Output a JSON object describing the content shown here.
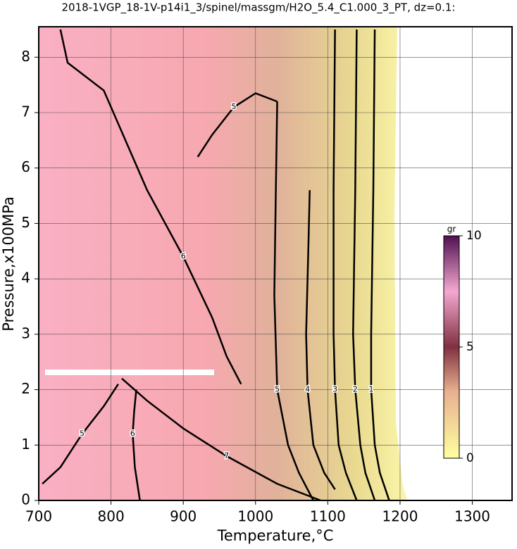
{
  "chart_data": {
    "type": "contour",
    "title": "2018-1VGP_18-1V-p14i1_3/spinel/massgm/H2O_5.4_C1.000_3_PT, dz=0.1:",
    "x_label": "Temperature,°C",
    "y_label": "Pressure,x100MPa",
    "xlim": [
      700,
      1355
    ],
    "xticks": [
      700,
      800,
      900,
      1000,
      1100,
      1200,
      1300
    ],
    "ylim": [
      0,
      8.55
    ],
    "yticks": [
      0,
      1,
      2,
      3,
      4,
      5,
      6,
      7,
      8
    ],
    "grid": true,
    "color": "#000000",
    "contours": [
      {
        "level": 6,
        "x": [
          730,
          740,
          790,
          850,
          900,
          940,
          960,
          980
        ],
        "y": [
          8.5,
          7.9,
          7.4,
          5.6,
          4.4,
          3.3,
          2.6,
          2.1
        ]
      },
      {
        "level": 5,
        "x": [
          920,
          940,
          970,
          1000,
          1030
        ],
        "y": [
          6.2,
          6.6,
          7.1,
          7.35,
          7.2
        ]
      },
      {
        "level": 5,
        "x": [
          1030,
          1028,
          1026,
          1030,
          1045,
          1060,
          1080
        ],
        "y": [
          7.2,
          5.5,
          3.7,
          2.0,
          1.0,
          0.5,
          0
        ]
      },
      {
        "level": 4,
        "x": [
          1075,
          1073,
          1070,
          1072,
          1080,
          1095,
          1110
        ],
        "y": [
          5.6,
          4.5,
          3.0,
          2.0,
          1.0,
          0.5,
          0.2
        ]
      },
      {
        "level": 3,
        "x": [
          1110,
          1108,
          1108,
          1110,
          1115,
          1125,
          1140
        ],
        "y": [
          8.5,
          5.6,
          3.0,
          2.0,
          1.0,
          0.5,
          0
        ]
      },
      {
        "level": 2,
        "x": [
          1140,
          1138,
          1135,
          1138,
          1145,
          1152,
          1165
        ],
        "y": [
          8.5,
          5.6,
          3.0,
          2.0,
          1.0,
          0.5,
          0
        ]
      },
      {
        "level": 1,
        "x": [
          1165,
          1163,
          1160,
          1160,
          1165,
          1172,
          1185
        ],
        "y": [
          8.5,
          5.6,
          3.0,
          2.0,
          1.0,
          0.5,
          0
        ]
      },
      {
        "level": 6,
        "x": [
          835,
          832,
          830,
          833,
          840
        ],
        "y": [
          2.0,
          1.6,
          1.2,
          0.6,
          0
        ]
      },
      {
        "level": 7,
        "x": [
          815,
          850,
          900,
          960,
          1030,
          1090
        ],
        "y": [
          2.2,
          1.8,
          1.3,
          0.8,
          0.3,
          0
        ]
      },
      {
        "level": 5,
        "x": [
          705,
          730,
          760,
          790,
          810
        ],
        "y": [
          0.3,
          0.6,
          1.2,
          1.7,
          2.1
        ]
      }
    ],
    "colorbar": {
      "label": "gr",
      "lim": [
        0,
        10
      ],
      "ticks": [
        0,
        5,
        10
      ]
    }
  }
}
